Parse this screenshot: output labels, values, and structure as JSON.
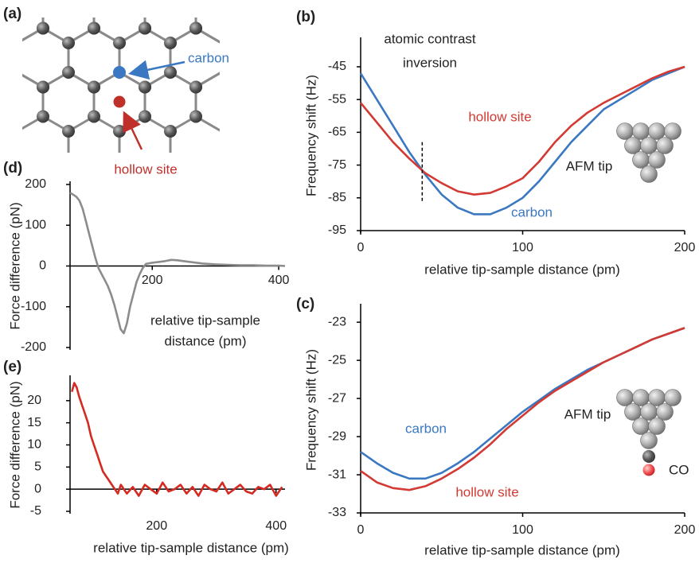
{
  "diagram": {
    "panel": "(a)",
    "carbon_label": "carbon",
    "hollow_label": "hollow site"
  },
  "chart_data": [
    {
      "type": "line",
      "panel": "(b)",
      "ylabel": "Frequency shift (Hz)",
      "xlabel": "relative tip-sample distance (pm)",
      "x": [
        0,
        10,
        20,
        30,
        40,
        50,
        60,
        70,
        80,
        90,
        100,
        110,
        120,
        130,
        140,
        150,
        160,
        170,
        180,
        190,
        200
      ],
      "series": [
        {
          "name": "carbon",
          "color": "#3a78c2",
          "values": [
            -47,
            -55,
            -63,
            -71,
            -78,
            -84,
            -88,
            -90,
            -90,
            -88,
            -85,
            -80,
            -74,
            -68,
            -63,
            -58,
            -55,
            -52,
            -49,
            -47,
            -45
          ]
        },
        {
          "name": "hollow site",
          "color": "#d23a33",
          "values": [
            -56,
            -62,
            -68,
            -73,
            -77.5,
            -80.5,
            -83,
            -84,
            -83.5,
            -81.5,
            -79,
            -74,
            -68,
            -63,
            -59,
            -56,
            -53.5,
            -51,
            -48.5,
            -46.5,
            -45
          ]
        }
      ],
      "xlim": [
        0,
        200
      ],
      "ylim": [
        -95,
        -37
      ],
      "xticks": [
        0,
        100,
        200
      ],
      "yticks": [
        -45,
        -55,
        -65,
        -75,
        -85,
        -95
      ],
      "annotations": [
        "atomic contrast",
        "inversion",
        "AFM tip"
      ],
      "marker_line": {
        "x": 38,
        "y": [
          -68,
          -86
        ]
      }
    },
    {
      "type": "line",
      "panel": "(c)",
      "ylabel": "Frequency shift (Hz)",
      "xlabel": "relative tip-sample distance (pm)",
      "x": [
        0,
        10,
        20,
        30,
        40,
        50,
        60,
        70,
        80,
        90,
        100,
        110,
        120,
        130,
        140,
        150,
        160,
        170,
        180,
        190,
        200
      ],
      "series": [
        {
          "name": "carbon",
          "color": "#3a78c2",
          "values": [
            -29.8,
            -30.4,
            -30.9,
            -31.2,
            -31.2,
            -30.9,
            -30.4,
            -29.8,
            -29.1,
            -28.4,
            -27.7,
            -27.1,
            -26.5,
            -26,
            -25.5,
            -25.1,
            -24.7,
            -24.3,
            -23.9,
            -23.6,
            -23.3
          ]
        },
        {
          "name": "hollow site",
          "color": "#d23a33",
          "values": [
            -30.8,
            -31.4,
            -31.7,
            -31.8,
            -31.6,
            -31.2,
            -30.7,
            -30.1,
            -29.4,
            -28.6,
            -27.9,
            -27.2,
            -26.6,
            -26.1,
            -25.6,
            -25.1,
            -24.7,
            -24.3,
            -23.9,
            -23.6,
            -23.3
          ]
        }
      ],
      "xlim": [
        0,
        200
      ],
      "ylim": [
        -33,
        -22.2
      ],
      "xticks": [
        0,
        100,
        200
      ],
      "yticks": [
        -23,
        -25,
        -27,
        -29,
        -31,
        -33
      ],
      "annotations": [
        "AFM tip",
        "CO"
      ]
    },
    {
      "type": "line",
      "panel": "(d)",
      "ylabel": "Force difference (pN)",
      "xlabel": [
        "relative tip-sample",
        "distance (pm)"
      ],
      "x": [
        70,
        75,
        80,
        85,
        90,
        95,
        100,
        105,
        110,
        115,
        120,
        125,
        130,
        135,
        140,
        145,
        150,
        155,
        160,
        165,
        170,
        175,
        180,
        185,
        190,
        200,
        210,
        220,
        230,
        240,
        250,
        260,
        270,
        280,
        300,
        320,
        340,
        360,
        380,
        400,
        410
      ],
      "series": [
        {
          "color": "#8c8c8c",
          "values": [
            180,
            175,
            170,
            160,
            140,
            110,
            80,
            50,
            20,
            -5,
            -20,
            -35,
            -50,
            -70,
            -95,
            -125,
            -155,
            -165,
            -140,
            -100,
            -70,
            -40,
            -20,
            -5,
            5,
            8,
            10,
            12,
            15,
            14,
            12,
            10,
            8,
            6,
            4,
            3,
            2,
            2,
            1,
            1,
            0
          ]
        }
      ],
      "xlim": [
        70,
        410
      ],
      "ylim": [
        -200,
        200
      ],
      "xticks": [
        200,
        400
      ],
      "yticks": [
        200,
        100,
        0,
        -100,
        -200
      ]
    },
    {
      "type": "line",
      "panel": "(e)",
      "ylabel": "Force difference (pN)",
      "xlabel": "relative tip-sample distance (pm)",
      "x": [
        58,
        62,
        66,
        70,
        75,
        80,
        85,
        90,
        95,
        100,
        105,
        110,
        115,
        120,
        125,
        130,
        135,
        140,
        150,
        160,
        170,
        180,
        190,
        200,
        210,
        220,
        230,
        240,
        250,
        260,
        270,
        280,
        290,
        300,
        310,
        320,
        330,
        340,
        350,
        360,
        370,
        380,
        390,
        400,
        410
      ],
      "series": [
        {
          "color": "#d42a22",
          "values": [
            22,
            24,
            23,
            21,
            19,
            17,
            15,
            12,
            10,
            8,
            6,
            4,
            3,
            2,
            1,
            0,
            -1,
            1,
            -1,
            0.5,
            -1.5,
            1,
            0,
            -1,
            1.5,
            -0.5,
            0,
            1,
            -1,
            0.5,
            -1.5,
            1,
            0,
            -0.5,
            1.5,
            -1,
            0,
            1,
            -0.5,
            -1,
            0.5,
            0,
            1,
            -1.5,
            0.5
          ]
        }
      ],
      "xlim": [
        55,
        415
      ],
      "ylim": [
        -5,
        25
      ],
      "xticks": [
        200,
        400
      ],
      "yticks": [
        20,
        15,
        10,
        5,
        0,
        -5
      ]
    }
  ]
}
